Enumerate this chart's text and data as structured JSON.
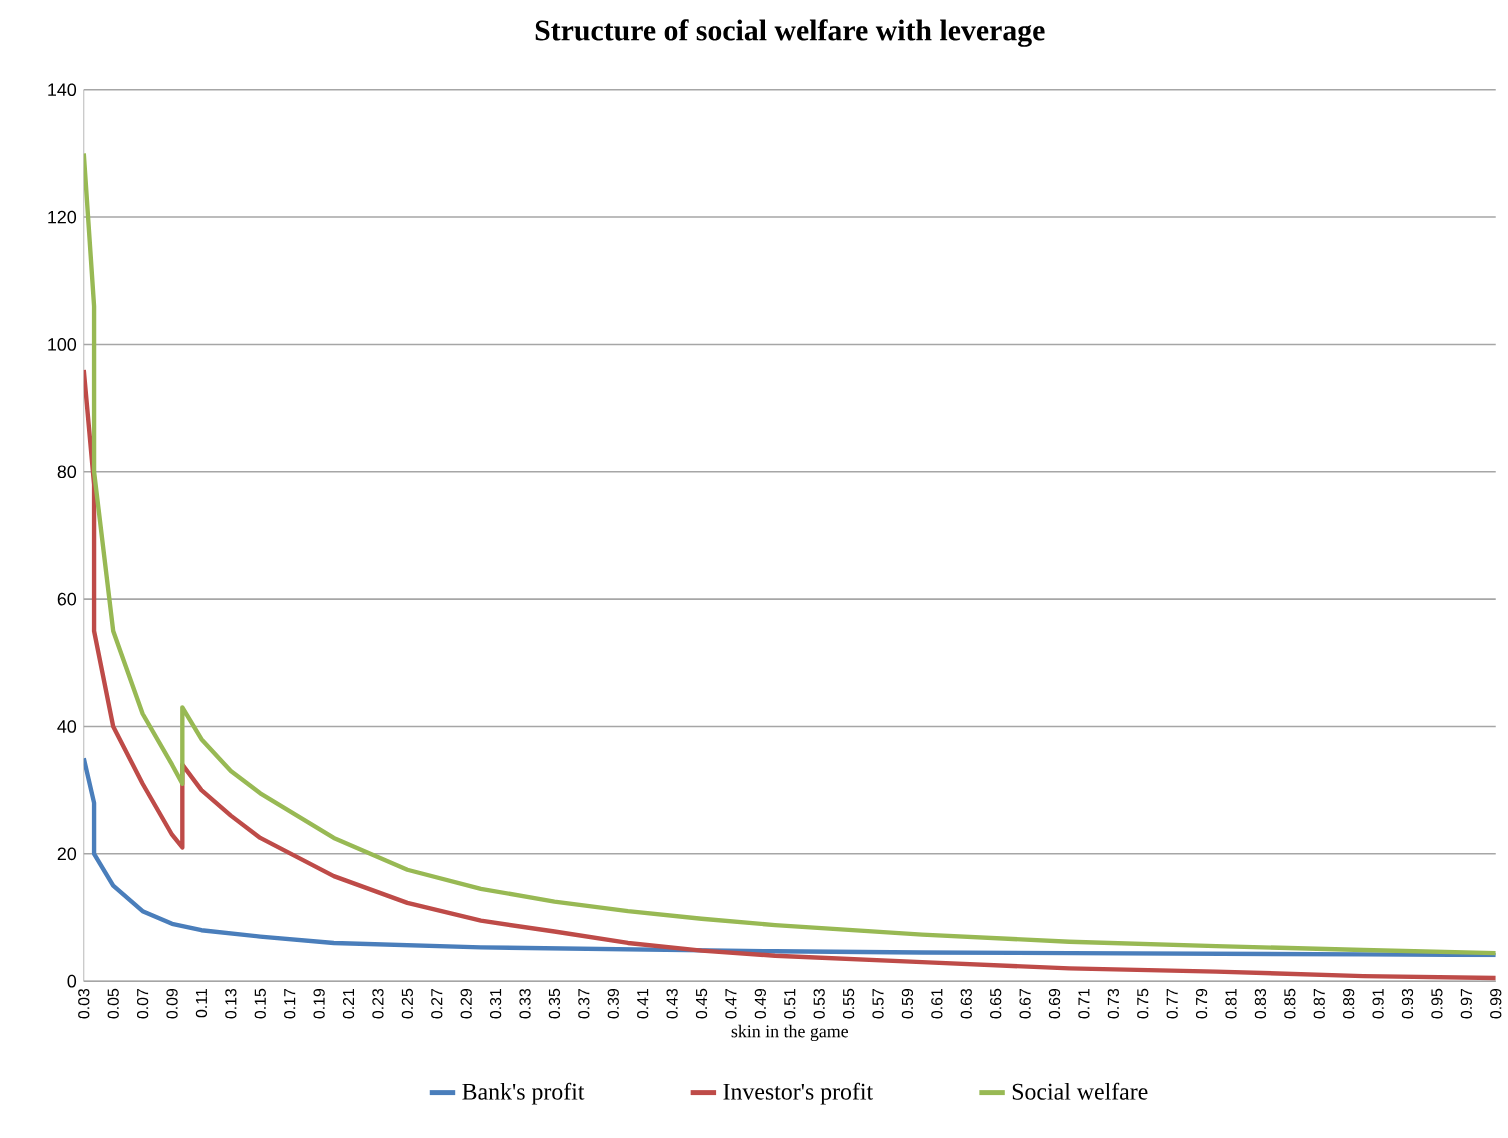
{
  "chart_data": {
    "type": "line",
    "title": "Structure of social welfare with leverage",
    "xlabel": "skin in the game",
    "xlim": [
      0.03,
      0.99
    ],
    "xticks": [
      0.03,
      0.05,
      0.07,
      0.09,
      0.11,
      0.13,
      0.15,
      0.17,
      0.19,
      0.21,
      0.23,
      0.25,
      0.27,
      0.29,
      0.31,
      0.33,
      0.35,
      0.37,
      0.39,
      0.41,
      0.43,
      0.45,
      0.47,
      0.49,
      0.51,
      0.53,
      0.55,
      0.57,
      0.59,
      0.61,
      0.63,
      0.65,
      0.67,
      0.69,
      0.71,
      0.73,
      0.75,
      0.77,
      0.79,
      0.81,
      0.83,
      0.85,
      0.87,
      0.89,
      0.91,
      0.93,
      0.95,
      0.97,
      0.99
    ],
    "ylim": [
      0,
      140
    ],
    "yticks": [
      0,
      20,
      40,
      60,
      80,
      100,
      120,
      140
    ],
    "grid": "y",
    "legend": "bottom",
    "series": [
      {
        "name": "Bank's profit",
        "color": "#4a7ebb",
        "x": [
          0.03,
          0.037,
          0.037,
          0.05,
          0.07,
          0.09,
          0.11,
          0.15,
          0.2,
          0.3,
          0.4,
          0.5,
          0.6,
          0.7,
          0.8,
          0.9,
          0.99
        ],
        "values": [
          35,
          28,
          20,
          15,
          11,
          9,
          8,
          7,
          6,
          5.3,
          5,
          4.7,
          4.5,
          4.4,
          4.3,
          4.2,
          4.1
        ]
      },
      {
        "name": "Investor's profit",
        "color": "#be4b48",
        "x": [
          0.03,
          0.037,
          0.037,
          0.05,
          0.07,
          0.09,
          0.097,
          0.097,
          0.11,
          0.13,
          0.15,
          0.2,
          0.25,
          0.3,
          0.35,
          0.4,
          0.45,
          0.5,
          0.6,
          0.7,
          0.8,
          0.9,
          0.99
        ],
        "values": [
          96,
          78,
          55,
          40,
          31,
          23,
          21,
          34,
          30,
          26,
          22.5,
          16.5,
          12.3,
          9.5,
          7.8,
          6,
          4.8,
          4,
          3,
          2,
          1.5,
          0.8,
          0.5
        ]
      },
      {
        "name": "Social welfare",
        "color": "#98b954",
        "x": [
          0.03,
          0.037,
          0.037,
          0.05,
          0.07,
          0.09,
          0.097,
          0.097,
          0.11,
          0.13,
          0.15,
          0.2,
          0.25,
          0.3,
          0.35,
          0.4,
          0.45,
          0.5,
          0.6,
          0.7,
          0.8,
          0.9,
          0.99
        ],
        "values": [
          130,
          106,
          80,
          55,
          42,
          34,
          31,
          43,
          38,
          33,
          29.5,
          22.5,
          17.5,
          14.5,
          12.5,
          11,
          9.8,
          8.8,
          7.3,
          6.2,
          5.5,
          4.9,
          4.4
        ]
      }
    ]
  }
}
